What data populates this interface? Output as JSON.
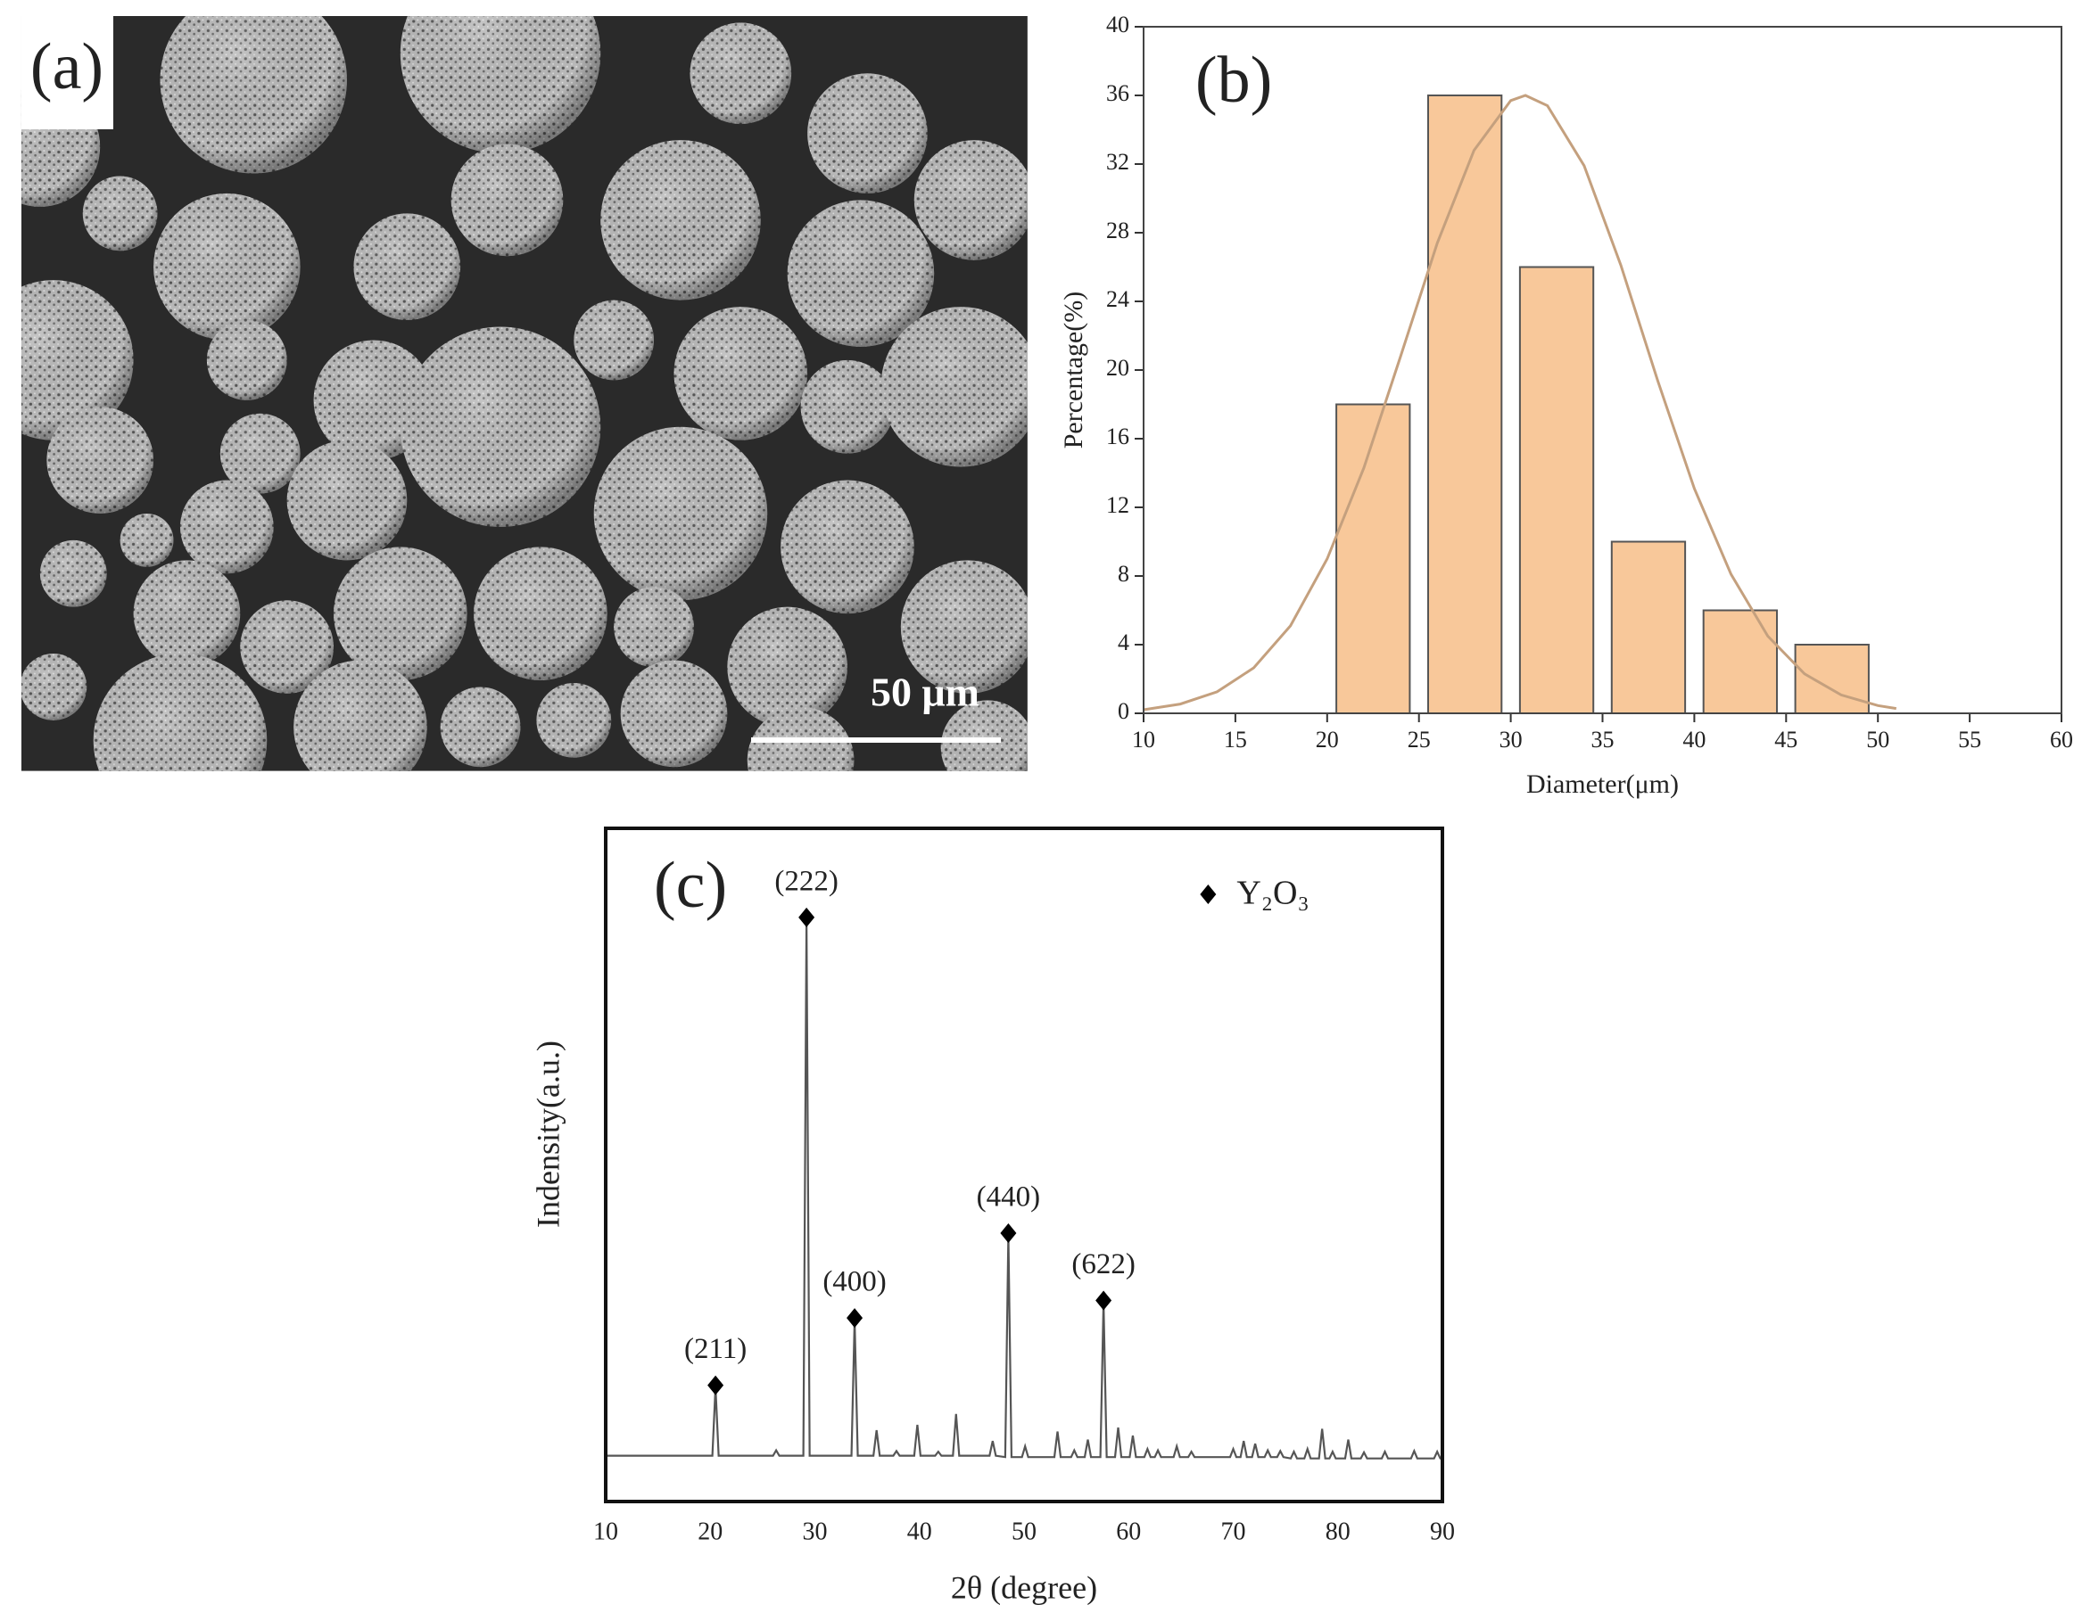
{
  "image_panel": {
    "label": "(a)",
    "scale_bar": "50 μm"
  },
  "chart_data": [
    {
      "type": "histogram",
      "panel_label": "(b)",
      "x_label": "Diameter(μm)",
      "y_label": "Percentage(%)",
      "bins": [
        20,
        25,
        30,
        35,
        40,
        45,
        50
      ],
      "values": [
        18,
        36,
        26,
        10,
        6,
        4
      ],
      "color": "#f8c89a",
      "edge_color": "#555555",
      "fit": {
        "color": "#c4a07e",
        "x": [
          10,
          12,
          14,
          16,
          18,
          20,
          22,
          24,
          26,
          28,
          30,
          30.8,
          32,
          34,
          36,
          38,
          40,
          42,
          44,
          46,
          48,
          50,
          51
        ],
        "values": [
          0.21,
          0.54,
          1.25,
          2.65,
          5.1,
          9.0,
          14.3,
          20.8,
          27.4,
          32.8,
          35.7,
          36,
          35.4,
          31.9,
          26.1,
          19.4,
          13.1,
          8.1,
          4.5,
          2.3,
          1.07,
          0.45,
          0.28
        ]
      },
      "xlim": [
        10,
        60
      ],
      "xticks": [
        10,
        15,
        20,
        25,
        30,
        35,
        40,
        45,
        50,
        55,
        60
      ],
      "ylim": [
        0,
        40
      ],
      "yticks": [
        0,
        4,
        8,
        12,
        16,
        20,
        24,
        28,
        32,
        36,
        40
      ]
    },
    {
      "type": "line",
      "panel_label": "(c)",
      "x_label": "2θ (degree)",
      "y_label": "Indensity(a.u.)",
      "color": "#555555",
      "x": [
        10,
        20.2,
        20.5,
        20.8,
        26.0,
        26.3,
        26.6,
        28.9,
        29.2,
        29.5,
        33.5,
        33.8,
        34.1,
        35.6,
        35.9,
        36.2,
        37.5,
        37.8,
        38.1,
        39.5,
        39.8,
        40.1,
        41.5,
        41.8,
        42.1,
        43.2,
        43.5,
        43.8,
        46.7,
        47,
        47.3,
        48.2,
        48.5,
        48.8,
        49.8,
        50.1,
        50.4,
        52.9,
        53.2,
        53.5,
        54.5,
        54.8,
        55.1,
        55.8,
        56.1,
        56.4,
        57.3,
        57.6,
        57.9,
        58.7,
        59,
        59.3,
        60.1,
        60.4,
        60.7,
        61.5,
        61.8,
        62.1,
        62.5,
        62.8,
        63.1,
        64.3,
        64.6,
        64.9,
        65.7,
        66,
        66.3,
        69.7,
        70,
        70.3,
        70.7,
        71,
        71.3,
        71.8,
        72.1,
        72.4,
        73,
        73.3,
        73.6,
        74.2,
        74.5,
        74.8,
        75.5,
        75.8,
        76.1,
        76.8,
        77.1,
        77.4,
        78.2,
        78.5,
        78.8,
        79.2,
        79.5,
        79.8,
        80.7,
        81,
        81.3,
        82.2,
        82.5,
        82.8,
        84.2,
        84.5,
        84.8,
        87,
        87.3,
        87.6,
        89.2,
        89.5,
        89.8,
        90
      ],
      "values": [
        6.8,
        6.8,
        17,
        6.8,
        6.8,
        7.6,
        6.8,
        6.8,
        86.5,
        6.8,
        6.8,
        27,
        6.8,
        6.8,
        10.6,
        6.8,
        6.8,
        7.5,
        6.8,
        6.8,
        11.4,
        6.8,
        6.8,
        7.4,
        6.8,
        6.8,
        13,
        6.8,
        6.8,
        9,
        6.8,
        6.6,
        39.6,
        6.6,
        6.6,
        8.2,
        6.6,
        6.6,
        10.4,
        6.6,
        6.6,
        7.6,
        6.6,
        6.6,
        9.2,
        6.6,
        6.6,
        29.6,
        6.6,
        6.6,
        11,
        6.6,
        6.6,
        9.8,
        6.6,
        6.6,
        7.8,
        6.6,
        6.6,
        7.6,
        6.6,
        6.6,
        8.2,
        6.6,
        6.6,
        7.4,
        6.6,
        6.6,
        7.8,
        6.6,
        6.6,
        9,
        6.6,
        6.6,
        8.6,
        6.6,
        6.6,
        7.6,
        6.6,
        6.6,
        7.5,
        6.6,
        6.4,
        7.4,
        6.4,
        6.4,
        7.8,
        6.4,
        6.4,
        10.8,
        6.4,
        6.4,
        7.4,
        6.4,
        6.4,
        9.2,
        6.4,
        6.4,
        7.3,
        6.4,
        6.4,
        7.4,
        6.4,
        6.4,
        7.5,
        6.4,
        6.4,
        7.4,
        6.4,
        6.4
      ],
      "annotations": [
        {
          "label": "(211)",
          "x": 20.5
        },
        {
          "label": "(222)",
          "x": 29.2
        },
        {
          "label": "(400)",
          "x": 33.8
        },
        {
          "label": "(440)",
          "x": 48.5
        },
        {
          "label": "(622)",
          "x": 57.6
        }
      ],
      "legend": {
        "label": "Y₂O₃",
        "position": "upper right"
      },
      "xlim": [
        10,
        90
      ],
      "xticks": [
        10,
        20,
        30,
        40,
        50,
        60,
        70,
        80,
        90
      ],
      "ylim": [
        0,
        100
      ]
    }
  ]
}
